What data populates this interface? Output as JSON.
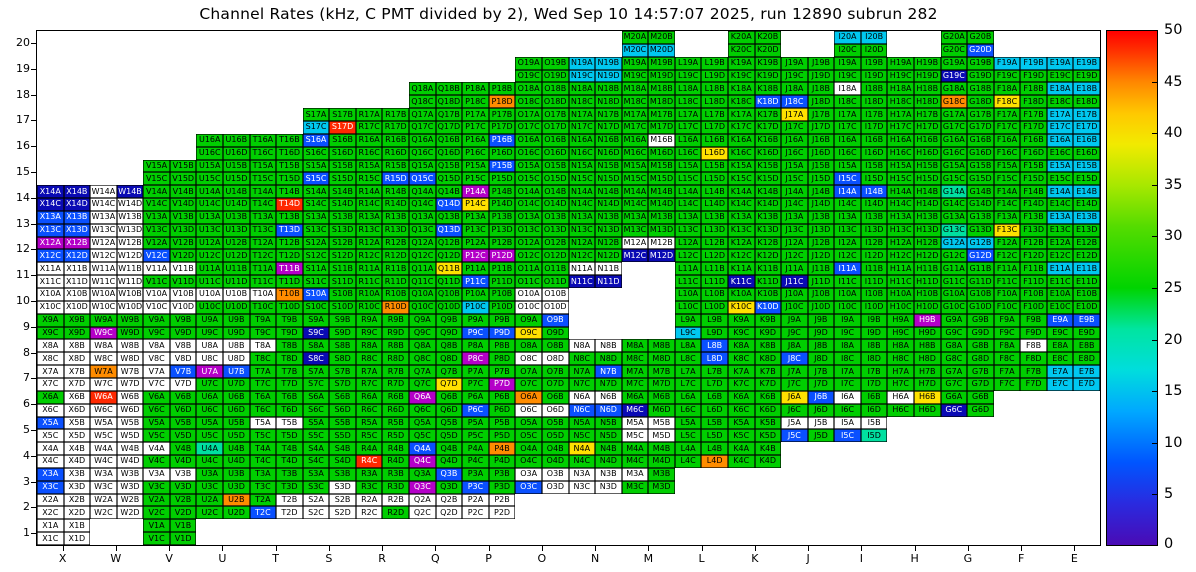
{
  "title": "Channel Rates (kHz, C PMT divided by 2), Wed Sep 10 14:57:07 2025, run 12890 subrun 282",
  "chart_data": {
    "type": "heatmap",
    "title": "Channel Rates (kHz, C PMT divided by 2), Wed Sep 10 14:57:07 2025, run 12890 subrun 282",
    "x_labels": [
      "X",
      "W",
      "V",
      "U",
      "T",
      "S",
      "R",
      "Q",
      "P",
      "O",
      "N",
      "M",
      "L",
      "K",
      "J",
      "I",
      "H",
      "G",
      "F",
      "E"
    ],
    "y_labels": [
      1,
      2,
      3,
      4,
      5,
      6,
      7,
      8,
      9,
      10,
      11,
      12,
      13,
      14,
      15,
      16,
      17,
      18,
      19,
      20
    ],
    "sub_channels": [
      "A",
      "B",
      "C",
      "D"
    ],
    "colorbar": {
      "min": 0,
      "max": 50,
      "ticks": [
        0,
        5,
        10,
        15,
        20,
        25,
        30,
        35,
        40,
        45,
        50
      ],
      "gradient": [
        {
          "p": 0,
          "c": "#4A0BB5"
        },
        {
          "p": 8,
          "c": "#2A2ADF"
        },
        {
          "p": 16,
          "c": "#0055FF"
        },
        {
          "p": 26,
          "c": "#00A8FF"
        },
        {
          "p": 34,
          "c": "#00DDDD"
        },
        {
          "p": 42,
          "c": "#00E5A0"
        },
        {
          "p": 50,
          "c": "#00D400"
        },
        {
          "p": 62,
          "c": "#55DC00"
        },
        {
          "p": 70,
          "c": "#A8E800"
        },
        {
          "p": 78,
          "c": "#F2EA00"
        },
        {
          "p": 84,
          "c": "#FFC800"
        },
        {
          "p": 90,
          "c": "#FF8800"
        },
        {
          "p": 96,
          "c": "#FF3300"
        },
        {
          "p": 100,
          "c": "#FF0000"
        }
      ]
    },
    "legend": {
      "w": {
        "value": 0,
        "color": "#FFFFFF",
        "text": "#000000"
      },
      "m": {
        "value": 0.5,
        "color": "#B400C8",
        "text": "#FFFFFF"
      },
      "n": {
        "value": 2,
        "color": "#0A0AB4",
        "text": "#FFFFFF"
      },
      "b": {
        "value": 8,
        "color": "#0A50FF",
        "text": "#FFFFFF"
      },
      "c": {
        "value": 16,
        "color": "#00C8F0",
        "text": "#000000"
      },
      "t": {
        "value": 21,
        "color": "#00E0A0",
        "text": "#000000"
      },
      "g": {
        "value": 27,
        "color": "#00CE00",
        "text": "#000000"
      },
      "y": {
        "value": 37,
        "color": "#FFE100",
        "text": "#000000"
      },
      "o": {
        "value": 42,
        "color": "#FF8C00",
        "text": "#000000"
      },
      "r": {
        "value": 48,
        "color": "#FF2800",
        "text": "#FFFFFF"
      }
    },
    "rows": [
      {
        "n": 20,
        "cols": {
          "M": "ggcc",
          "K": "gggg",
          "I": "ccgg",
          "G": "gggb"
        }
      },
      {
        "n": 19,
        "cols": {
          "O": "gggg",
          "N": "cccc",
          "M": "gggg",
          "L": "gggg",
          "K": "gggg",
          "J": "gggg",
          "I": "gggg",
          "H": "gggg",
          "G": "ggng",
          "F": "ccgg",
          "E": "ccgg"
        }
      },
      {
        "n": 18,
        "cols": {
          "Q": "gggg",
          "P": "gggo",
          "O": "gggg",
          "N": "gggg",
          "M": "gggg",
          "L": "gggg",
          "K": "gggb",
          "J": "ggbg",
          "I": "wggg",
          "H": "gggg",
          "G": "ggog",
          "F": "ggyg",
          "E": "ccgg"
        }
      },
      {
        "n": 17,
        "cols": {
          "S": "ggcr",
          "R": "gggg",
          "Q": "gggg",
          "P": "gggg",
          "O": "gggg",
          "N": "gggg",
          "M": "gggg",
          "L": "gggg",
          "K": "gggg",
          "J": "yggg",
          "I": "gggg",
          "H": "gggg",
          "G": "gggg",
          "F": "gggg",
          "E": "cccc"
        }
      },
      {
        "n": 16,
        "cols": {
          "U": "gggg",
          "T": "gggg",
          "S": "bggg",
          "R": "gggg",
          "Q": "gggg",
          "P": "gbgg",
          "O": "gggg",
          "N": "gggg",
          "M": "gwgg",
          "L": "gggy",
          "K": "gggg",
          "J": "gggg",
          "I": "gggg",
          "H": "gggg",
          "G": "gggg",
          "F": "gggg",
          "E": "ccgg"
        }
      },
      {
        "n": 15,
        "cols": {
          "V": "gggg",
          "U": "gggg",
          "T": "gggg",
          "S": "ggbg",
          "R": "gggb",
          "Q": "ggbg",
          "P": "gbgg",
          "O": "gggg",
          "N": "gggg",
          "M": "gggg",
          "L": "gggg",
          "K": "gggg",
          "J": "gggg",
          "I": "ggbg",
          "H": "gggg",
          "G": "gggg",
          "F": "gggg",
          "E": "ccgg"
        }
      },
      {
        "n": 14,
        "cols": {
          "X": "nnnn",
          "W": "wnww",
          "V": "gggg",
          "U": "gggg",
          "T": "gggr",
          "S": "gggg",
          "R": "gggg",
          "Q": "gggb",
          "P": "mgyg",
          "O": "gggg",
          "N": "gggg",
          "M": "gggg",
          "L": "gggg",
          "K": "gggg",
          "J": "gggg",
          "I": "bbgg",
          "H": "gggg",
          "G": "tggg",
          "F": "gggg",
          "E": "ccgg"
        }
      },
      {
        "n": 13,
        "cols": {
          "X": "bbbb",
          "W": "wwww",
          "V": "gggg",
          "U": "gggg",
          "T": "gggb",
          "S": "gggg",
          "R": "gggg",
          "Q": "gggb",
          "P": "gggg",
          "O": "gggg",
          "N": "gggg",
          "M": "gggg",
          "L": "gggg",
          "K": "gggg",
          "J": "gggg",
          "I": "gggg",
          "H": "gggg",
          "G": "ggtg",
          "F": "ggyg",
          "E": "ccgg"
        }
      },
      {
        "n": 12,
        "cols": {
          "X": "mmbb",
          "W": "wwww",
          "V": "ggbg",
          "U": "gggg",
          "T": "gggg",
          "S": "gggg",
          "R": "gggg",
          "Q": "gggg",
          "P": "ggmm",
          "O": "gggg",
          "N": "gggg",
          "M": "wwnn",
          "L": "gggg",
          "K": "gggg",
          "J": "gggg",
          "I": "gggg",
          "H": "gggg",
          "G": "ccgb",
          "F": "gggg",
          "E": "gggg"
        }
      },
      {
        "n": 11,
        "cols": {
          "X": "wwww",
          "W": "wwww",
          "V": "wwgg",
          "U": "gggg",
          "T": "gmgg",
          "S": "gggg",
          "R": "gggg",
          "Q": "gygg",
          "P": "ggbg",
          "O": "gggg",
          "N": "wwnn",
          "L": "gggg",
          "K": "ggng",
          "J": "ggng",
          "I": "bggg",
          "H": "gggg",
          "G": "gggg",
          "F": "gggg",
          "E": "ccgg"
        }
      },
      {
        "n": 10,
        "cols": {
          "X": "wwww",
          "W": "wwww",
          "V": "wwww",
          "U": "wwgg",
          "T": "wogg",
          "S": "bggg",
          "R": "gggo",
          "Q": "gggg",
          "P": "ggcg",
          "O": "wwww",
          "L": "gggg",
          "K": "ggyb",
          "J": "gggg",
          "I": "gggg",
          "H": "gggg",
          "G": "gggg",
          "F": "gggg",
          "E": "gggg"
        }
      },
      {
        "n": 9,
        "cols": {
          "X": "gggg",
          "W": "ggmg",
          "V": "gggg",
          "U": "gggg",
          "T": "gggg",
          "S": "ggng",
          "R": "gggg",
          "Q": "gggg",
          "P": "ggbb",
          "O": "gbyg",
          "L": "ggcg",
          "K": "gggg",
          "J": "gggg",
          "I": "gggg",
          "H": "gmgg",
          "G": "gggg",
          "F": "gggg",
          "E": "bbgg"
        }
      },
      {
        "n": 8,
        "cols": {
          "X": "wwww",
          "W": "wwww",
          "V": "wwww",
          "U": "wwww",
          "T": "wggg",
          "S": "ggng",
          "R": "gggg",
          "Q": "gggg",
          "P": "ggmg",
          "O": "ggww",
          "N": "wwgg",
          "M": "gggg",
          "L": "gbgb",
          "K": "gggg",
          "J": "ggbg",
          "I": "gggg",
          "H": "gggg",
          "G": "gggg",
          "F": "gwgg",
          "E": "gggg"
        }
      },
      {
        "n": 7,
        "cols": {
          "X": "wwww",
          "W": "owww",
          "V": "wbww",
          "U": "mbgg",
          "T": "gggg",
          "S": "gggg",
          "R": "gggg",
          "Q": "gggy",
          "P": "gggm",
          "O": "gggg",
          "N": "gbgg",
          "M": "gggg",
          "L": "gggg",
          "K": "gggg",
          "J": "gggg",
          "I": "gggg",
          "H": "gggg",
          "G": "gggg",
          "F": "gggg",
          "E": "cccc"
        }
      },
      {
        "n": 6,
        "cols": {
          "X": "gwww",
          "W": "rwww",
          "V": "gggg",
          "U": "gggg",
          "T": "gggg",
          "S": "gggg",
          "R": "gggg",
          "Q": "mggg",
          "P": "ggbg",
          "O": "ogww",
          "N": "wwbb",
          "M": "ggng",
          "L": "gggg",
          "K": "gggg",
          "J": "ybgg",
          "I": "wggg",
          "H": "wygg",
          "G": "ggng"
        }
      },
      {
        "n": 5,
        "cols": {
          "X": "bwww",
          "W": "wwww",
          "V": "gggg",
          "U": "gggg",
          "T": "wwgg",
          "S": "gggg",
          "R": "gggg",
          "Q": "gggg",
          "P": "gggg",
          "O": "gggg",
          "N": "gggg",
          "M": "wwww",
          "L": "gggg",
          "K": "gggg",
          "J": "wwbg",
          "I": "wwbt"
        }
      },
      {
        "n": 4,
        "cols": {
          "X": "wwww",
          "W": "wwww",
          "V": "wggg",
          "U": "tggg",
          "T": "gggg",
          "S": "gggg",
          "R": "ggrg",
          "Q": "bgmg",
          "P": "gogg",
          "O": "gggg",
          "N": "yggg",
          "M": "gggg",
          "L": "gggo",
          "K": "gggg"
        }
      },
      {
        "n": 3,
        "cols": {
          "X": "bwbw",
          "W": "wwww",
          "V": "wwgg",
          "U": "gggg",
          "T": "gggg",
          "S": "gggw",
          "R": "gggg",
          "Q": "gbmg",
          "P": "ggbg",
          "O": "wwbw",
          "N": "wwww",
          "M": "wggg"
        }
      },
      {
        "n": 2,
        "cols": {
          "X": "wwww",
          "W": "wwww",
          "V": "gggg",
          "U": "gogg",
          "T": "gwbw",
          "S": "wwww",
          "R": "wwwg",
          "Q": "wwww",
          "P": "wwww"
        }
      },
      {
        "n": 1,
        "cols": {
          "X": "wwww",
          "V": "gggg"
        }
      }
    ]
  }
}
